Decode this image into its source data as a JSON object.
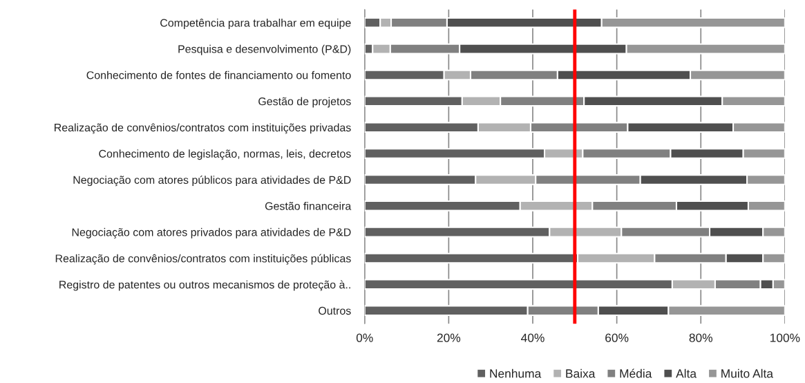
{
  "chart_data": {
    "type": "bar",
    "orientation": "horizontal",
    "stacked": true,
    "categories": [
      "Competência para trabalhar em equipe",
      "Pesquisa e desenvolvimento (P&D)",
      "Conhecimento de fontes de financiamento ou fomento",
      "Gestão de projetos",
      "Realização de convênios/contratos com instituições privadas",
      "Conhecimento de legislação, normas, leis, decretos",
      "Negociação com atores públicos para atividades de P&D",
      "Gestão financeira",
      "Negociação com atores privados para atividades de P&D",
      "Realização de convênios/contratos com instituições públicas",
      "Registro de patentes ou outros mecanismos de proteção à..",
      "Outros"
    ],
    "series": [
      {
        "name": "Nenhuma",
        "color": "#606060",
        "values": [
          3.7,
          1.9,
          18.9,
          23.2,
          27.0,
          42.8,
          26.4,
          37.0,
          44.0,
          50.7,
          73.2,
          38.8
        ]
      },
      {
        "name": "Baixa",
        "color": "#b2b2b2",
        "values": [
          2.6,
          4.2,
          6.3,
          9.1,
          12.5,
          9.1,
          14.3,
          17.2,
          17.1,
          18.3,
          10.2,
          null
        ]
      },
      {
        "name": "Média",
        "color": "#808080",
        "values": [
          13.3,
          16.5,
          20.7,
          19.9,
          23.1,
          20.9,
          24.9,
          20.0,
          21.0,
          17.0,
          10.8,
          16.8
        ]
      },
      {
        "name": "Alta",
        "color": "#4f4f4f",
        "values": [
          36.8,
          39.7,
          31.6,
          32.9,
          25.1,
          17.3,
          25.4,
          17.1,
          12.7,
          8.8,
          3.0,
          16.7
        ]
      },
      {
        "name": "Muito Alta",
        "color": "#969696",
        "values": [
          43.6,
          37.7,
          22.5,
          14.9,
          12.3,
          9.9,
          9.0,
          8.7,
          5.2,
          5.2,
          2.8,
          27.7
        ]
      }
    ],
    "xlim": [
      0,
      100
    ],
    "xticks": [
      {
        "value": 0,
        "label": "0%"
      },
      {
        "value": 20,
        "label": "20%"
      },
      {
        "value": 40,
        "label": "40%"
      },
      {
        "value": 60,
        "label": "60%"
      },
      {
        "value": 80,
        "label": "80%"
      },
      {
        "value": 100,
        "label": "100%"
      }
    ],
    "ref_lines": [
      {
        "axis": "x",
        "value": 50,
        "color": "#ff0000"
      }
    ],
    "grid": "x",
    "legend": "bottom"
  }
}
